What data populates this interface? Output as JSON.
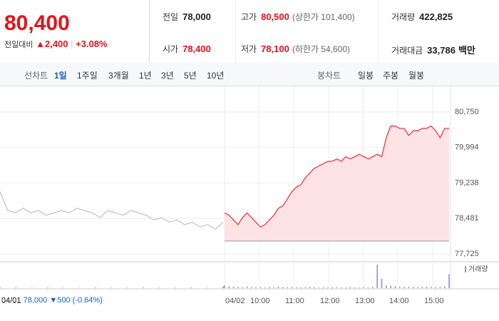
{
  "quote": {
    "price": "80,400",
    "change_label": "전일대비",
    "change": "▲2,400",
    "change_pct": "+3.08%"
  },
  "stats": [
    {
      "label": "전일",
      "value": "78,000"
    },
    {
      "label": "고가",
      "value": "80,500",
      "note": "(상한가 101,400)"
    },
    {
      "label": "거래량",
      "value": "422,825"
    },
    {
      "label": "시가",
      "value": "78,400"
    },
    {
      "label": "저가",
      "value": "78,100",
      "note": "(하한가 54,600)"
    },
    {
      "label": "거래대금",
      "value": "33,786",
      "unit": "백만"
    }
  ],
  "tabs": {
    "line_label": "선차트",
    "line_periods": [
      "1일",
      "1주일",
      "3개월",
      "1년",
      "3년",
      "5년",
      "10년"
    ],
    "selected": 0,
    "candle_label": "봉차트",
    "candle_periods": [
      "일봉",
      "주봉",
      "월봉"
    ]
  },
  "prev_day": {
    "date": "04/01",
    "close": "78,000",
    "change": "▼500",
    "change_pct": "(-0.64%)"
  },
  "chart_data": {
    "type": "line",
    "ylim": [
      77725,
      80750
    ],
    "yticks": [
      {
        "value": 80750,
        "label": "80,750"
      },
      {
        "value": 79994,
        "label": "79,994"
      },
      {
        "value": 79238,
        "label": "79,238"
      },
      {
        "value": 78481,
        "label": "78,481"
      },
      {
        "value": 77725,
        "label": "77,725"
      }
    ],
    "x_labels": [
      "04/01",
      "04/02",
      "10:00",
      "11:00",
      "12:00",
      "13:00",
      "14:00",
      "15:00"
    ],
    "baseline": 78000,
    "series": [
      {
        "color": "#c4c4c4",
        "values": [
          79050,
          78650,
          78600,
          78700,
          78600,
          78650,
          78550,
          78600,
          78650,
          78600,
          78700,
          78650,
          78600,
          78500,
          78650,
          78600,
          78550,
          78650,
          78600,
          78550,
          78450,
          78500,
          78400,
          78450,
          78350,
          78400,
          78300,
          78350,
          78250,
          78400
        ]
      },
      {
        "color": "#f0393e",
        "values": [
          78600,
          78550,
          78450,
          78350,
          78500,
          78600,
          78500,
          78400,
          78300,
          78350,
          78450,
          78550,
          78700,
          78750,
          78900,
          79050,
          79150,
          79200,
          79350,
          79450,
          79550,
          79600,
          79650,
          79700,
          79700,
          79750,
          79700,
          79800,
          79750,
          79800,
          79850,
          79800,
          79750,
          79800,
          79850,
          79800,
          80200,
          80450,
          80450,
          80400,
          80400,
          80250,
          80350,
          80350,
          80400,
          80400,
          80450,
          80350,
          80200,
          80400,
          80400
        ]
      }
    ],
    "volume": {
      "name": "거래량",
      "color": "#9b8fd0",
      "day1": [
        4,
        3,
        2,
        3,
        2,
        2,
        3,
        2,
        2,
        3,
        2,
        2,
        3,
        2,
        8
      ],
      "day2": [
        12,
        8,
        6,
        5,
        4,
        6,
        5,
        4,
        4,
        3,
        5,
        4,
        6,
        5,
        4,
        5,
        4,
        3,
        4,
        5,
        4,
        3,
        4,
        3,
        3,
        4,
        3,
        3,
        4,
        3,
        3,
        4,
        3,
        5,
        100,
        40,
        12,
        10,
        8,
        6,
        5,
        6,
        5,
        4,
        5,
        6,
        5,
        4,
        5,
        8,
        60
      ]
    }
  }
}
